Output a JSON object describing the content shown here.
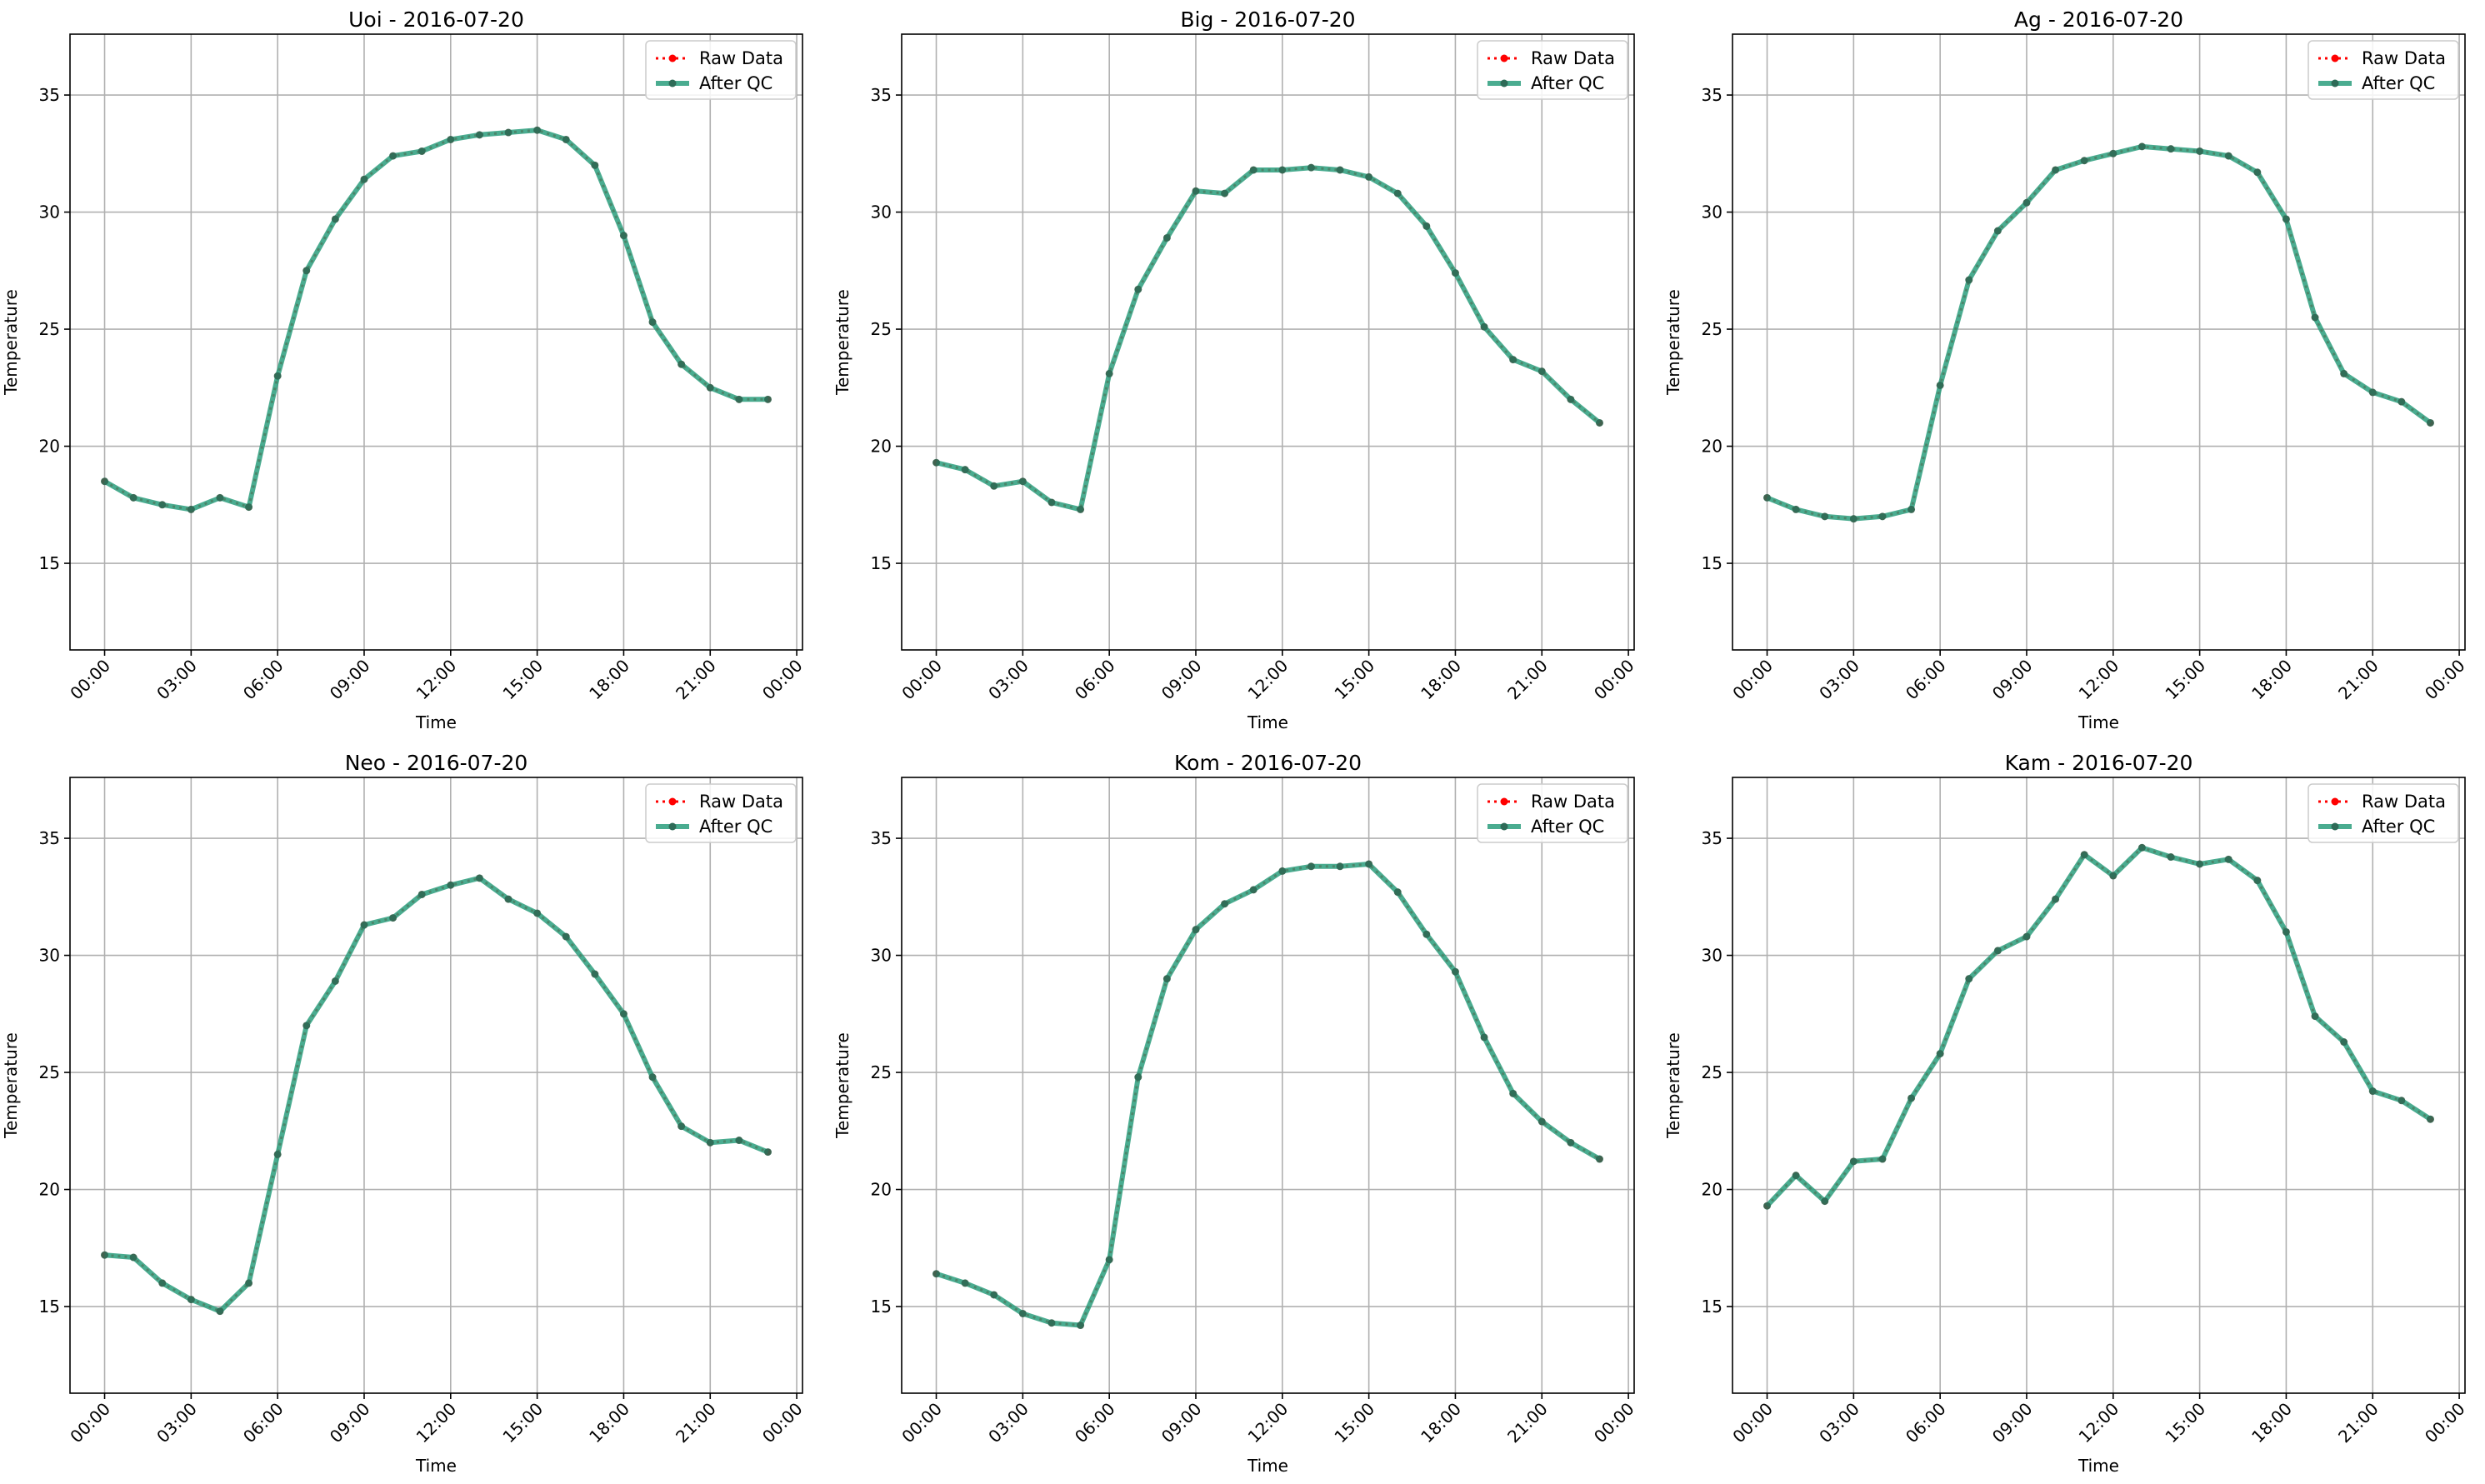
{
  "figure": {
    "legend_labels": {
      "raw": "Raw Data",
      "qc": "After QC"
    }
  },
  "colors": {
    "raw": "#ff0000",
    "qc": "#2a9d7c",
    "qc_marker": "#2e6b57",
    "grid": "#b0b0b0"
  },
  "chart_data": [
    {
      "type": "line",
      "title": "Uoi - 2016-07-20",
      "xlabel": "Time",
      "ylabel": "Temperature",
      "x_ticks": [
        "00:00",
        "03:00",
        "06:00",
        "09:00",
        "12:00",
        "15:00",
        "18:00",
        "21:00",
        "00:00"
      ],
      "y_ticks": [
        15,
        20,
        25,
        30,
        35
      ],
      "xlim_hours": [
        -1.2,
        24.2
      ],
      "ylim": [
        11.3,
        37.6
      ],
      "grid": true,
      "legend": "top-right",
      "series": [
        {
          "name": "Raw Data",
          "style": "dotted-red-markers",
          "x_hours": [
            0,
            1,
            2,
            3,
            4,
            5,
            6,
            7,
            8,
            9,
            10,
            11,
            12,
            13,
            14,
            15,
            16,
            17,
            18,
            19,
            20,
            21,
            22,
            23
          ],
          "values": [
            18.5,
            17.8,
            17.5,
            17.3,
            17.8,
            17.4,
            23.0,
            27.5,
            29.7,
            31.4,
            32.4,
            32.6,
            33.1,
            33.3,
            33.4,
            33.5,
            33.1,
            32.0,
            29.0,
            25.3,
            23.5,
            22.5,
            22.0,
            22.0
          ]
        },
        {
          "name": "After QC",
          "style": "solid-green",
          "x_hours": [
            0,
            1,
            2,
            3,
            4,
            5,
            6,
            7,
            8,
            9,
            10,
            11,
            12,
            13,
            14,
            15,
            16,
            17,
            18,
            19,
            20,
            21,
            22,
            23
          ],
          "values": [
            18.5,
            17.8,
            17.5,
            17.3,
            17.8,
            17.4,
            23.0,
            27.5,
            29.7,
            31.4,
            32.4,
            32.6,
            33.1,
            33.3,
            33.4,
            33.5,
            33.1,
            32.0,
            29.0,
            25.3,
            23.5,
            22.5,
            22.0,
            22.0
          ]
        }
      ]
    },
    {
      "type": "line",
      "title": "Big - 2016-07-20",
      "xlabel": "Time",
      "ylabel": "Temperature",
      "x_ticks": [
        "00:00",
        "03:00",
        "06:00",
        "09:00",
        "12:00",
        "15:00",
        "18:00",
        "21:00",
        "00:00"
      ],
      "y_ticks": [
        15,
        20,
        25,
        30,
        35
      ],
      "xlim_hours": [
        -1.2,
        24.2
      ],
      "ylim": [
        11.3,
        37.6
      ],
      "grid": true,
      "legend": "top-right",
      "series": [
        {
          "name": "Raw Data",
          "style": "dotted-red-markers",
          "x_hours": [
            0,
            1,
            2,
            3,
            4,
            5,
            6,
            7,
            8,
            9,
            10,
            11,
            12,
            13,
            14,
            15,
            16,
            17,
            18,
            19,
            20,
            21,
            22,
            23
          ],
          "values": [
            19.3,
            19.0,
            18.3,
            18.5,
            17.6,
            17.3,
            23.1,
            26.7,
            28.9,
            30.9,
            30.8,
            31.8,
            31.8,
            31.9,
            31.8,
            31.5,
            30.8,
            29.4,
            27.4,
            25.1,
            23.7,
            23.2,
            22.0,
            21.0
          ]
        },
        {
          "name": "After QC",
          "style": "solid-green",
          "x_hours": [
            0,
            1,
            2,
            3,
            4,
            5,
            6,
            7,
            8,
            9,
            10,
            11,
            12,
            13,
            14,
            15,
            16,
            17,
            18,
            19,
            20,
            21,
            22,
            23
          ],
          "values": [
            19.3,
            19.0,
            18.3,
            18.5,
            17.6,
            17.3,
            23.1,
            26.7,
            28.9,
            30.9,
            30.8,
            31.8,
            31.8,
            31.9,
            31.8,
            31.5,
            30.8,
            29.4,
            27.4,
            25.1,
            23.7,
            23.2,
            22.0,
            21.0
          ]
        }
      ]
    },
    {
      "type": "line",
      "title": "Ag - 2016-07-20",
      "xlabel": "Time",
      "ylabel": "Temperature",
      "x_ticks": [
        "00:00",
        "03:00",
        "06:00",
        "09:00",
        "12:00",
        "15:00",
        "18:00",
        "21:00",
        "00:00"
      ],
      "y_ticks": [
        15,
        20,
        25,
        30,
        35
      ],
      "xlim_hours": [
        -1.2,
        24.2
      ],
      "ylim": [
        11.3,
        37.6
      ],
      "grid": true,
      "legend": "top-right",
      "series": [
        {
          "name": "Raw Data",
          "style": "dotted-red-markers",
          "x_hours": [
            0,
            1,
            2,
            3,
            4,
            5,
            6,
            7,
            8,
            9,
            10,
            11,
            12,
            13,
            14,
            15,
            16,
            17,
            18,
            19,
            20,
            21,
            22,
            23
          ],
          "values": [
            17.8,
            17.3,
            17.0,
            16.9,
            17.0,
            17.3,
            22.6,
            27.1,
            29.2,
            30.4,
            31.8,
            32.2,
            32.5,
            32.8,
            32.7,
            32.6,
            32.4,
            31.7,
            29.7,
            25.5,
            23.1,
            22.3,
            21.9,
            21.0
          ]
        },
        {
          "name": "After QC",
          "style": "solid-green",
          "x_hours": [
            0,
            1,
            2,
            3,
            4,
            5,
            6,
            7,
            8,
            9,
            10,
            11,
            12,
            13,
            14,
            15,
            16,
            17,
            18,
            19,
            20,
            21,
            22,
            23
          ],
          "values": [
            17.8,
            17.3,
            17.0,
            16.9,
            17.0,
            17.3,
            22.6,
            27.1,
            29.2,
            30.4,
            31.8,
            32.2,
            32.5,
            32.8,
            32.7,
            32.6,
            32.4,
            31.7,
            29.7,
            25.5,
            23.1,
            22.3,
            21.9,
            21.0
          ]
        }
      ]
    },
    {
      "type": "line",
      "title": "Neo - 2016-07-20",
      "xlabel": "Time",
      "ylabel": "Temperature",
      "x_ticks": [
        "00:00",
        "03:00",
        "06:00",
        "09:00",
        "12:00",
        "15:00",
        "18:00",
        "21:00",
        "00:00"
      ],
      "y_ticks": [
        15,
        20,
        25,
        30,
        35
      ],
      "xlim_hours": [
        -1.2,
        24.2
      ],
      "ylim": [
        11.3,
        37.6
      ],
      "grid": true,
      "legend": "top-right",
      "series": [
        {
          "name": "Raw Data",
          "style": "dotted-red-markers",
          "x_hours": [
            0,
            1,
            2,
            3,
            4,
            5,
            6,
            7,
            8,
            9,
            10,
            11,
            12,
            13,
            14,
            15,
            16,
            17,
            18,
            19,
            20,
            21,
            22,
            23
          ],
          "values": [
            17.2,
            17.1,
            16.0,
            15.3,
            14.8,
            16.0,
            21.5,
            27.0,
            28.9,
            31.3,
            31.6,
            32.6,
            33.0,
            33.3,
            32.4,
            31.8,
            30.8,
            29.2,
            27.5,
            24.8,
            22.7,
            22.0,
            22.1,
            21.6
          ]
        },
        {
          "name": "After QC",
          "style": "solid-green",
          "x_hours": [
            0,
            1,
            2,
            3,
            4,
            5,
            6,
            7,
            8,
            9,
            10,
            11,
            12,
            13,
            14,
            15,
            16,
            17,
            18,
            19,
            20,
            21,
            22,
            23
          ],
          "values": [
            17.2,
            17.1,
            16.0,
            15.3,
            14.8,
            16.0,
            21.5,
            27.0,
            28.9,
            31.3,
            31.6,
            32.6,
            33.0,
            33.3,
            32.4,
            31.8,
            30.8,
            29.2,
            27.5,
            24.8,
            22.7,
            22.0,
            22.1,
            21.6
          ]
        }
      ]
    },
    {
      "type": "line",
      "title": "Kom - 2016-07-20",
      "xlabel": "Time",
      "ylabel": "Temperature",
      "x_ticks": [
        "00:00",
        "03:00",
        "06:00",
        "09:00",
        "12:00",
        "15:00",
        "18:00",
        "21:00",
        "00:00"
      ],
      "y_ticks": [
        15,
        20,
        25,
        30,
        35
      ],
      "xlim_hours": [
        -1.2,
        24.2
      ],
      "ylim": [
        11.3,
        37.6
      ],
      "grid": true,
      "legend": "top-right",
      "series": [
        {
          "name": "Raw Data",
          "style": "dotted-red-markers",
          "x_hours": [
            0,
            1,
            2,
            3,
            4,
            5,
            6,
            7,
            8,
            9,
            10,
            11,
            12,
            13,
            14,
            15,
            16,
            17,
            18,
            19,
            20,
            21,
            22,
            23
          ],
          "values": [
            16.4,
            16.0,
            15.5,
            14.7,
            14.3,
            14.2,
            17.0,
            24.8,
            29.0,
            31.1,
            32.2,
            32.8,
            33.6,
            33.8,
            33.8,
            33.9,
            32.7,
            30.9,
            29.3,
            26.5,
            24.1,
            22.9,
            22.0,
            21.3
          ]
        },
        {
          "name": "After QC",
          "style": "solid-green",
          "x_hours": [
            0,
            1,
            2,
            3,
            4,
            5,
            6,
            7,
            8,
            9,
            10,
            11,
            12,
            13,
            14,
            15,
            16,
            17,
            18,
            19,
            20,
            21,
            22,
            23
          ],
          "values": [
            16.4,
            16.0,
            15.5,
            14.7,
            14.3,
            14.2,
            17.0,
            24.8,
            29.0,
            31.1,
            32.2,
            32.8,
            33.6,
            33.8,
            33.8,
            33.9,
            32.7,
            30.9,
            29.3,
            26.5,
            24.1,
            22.9,
            22.0,
            21.3
          ]
        }
      ]
    },
    {
      "type": "line",
      "title": "Kam - 2016-07-20",
      "xlabel": "Time",
      "ylabel": "Temperature",
      "x_ticks": [
        "00:00",
        "03:00",
        "06:00",
        "09:00",
        "12:00",
        "15:00",
        "18:00",
        "21:00",
        "00:00"
      ],
      "y_ticks": [
        15,
        20,
        25,
        30,
        35
      ],
      "xlim_hours": [
        -1.2,
        24.2
      ],
      "ylim": [
        11.3,
        37.6
      ],
      "grid": true,
      "legend": "top-right",
      "series": [
        {
          "name": "Raw Data",
          "style": "dotted-red-markers",
          "x_hours": [
            0,
            1,
            2,
            3,
            4,
            5,
            6,
            7,
            8,
            9,
            10,
            11,
            12,
            13,
            14,
            15,
            16,
            17,
            18,
            19,
            20,
            21,
            22,
            23
          ],
          "values": [
            19.3,
            20.6,
            19.5,
            21.2,
            21.3,
            23.9,
            25.8,
            29.0,
            30.2,
            30.8,
            32.4,
            34.3,
            33.4,
            34.6,
            34.2,
            33.9,
            34.1,
            33.2,
            31.0,
            27.4,
            26.3,
            24.2,
            23.8,
            23.0
          ]
        },
        {
          "name": "After QC",
          "style": "solid-green",
          "x_hours": [
            0,
            1,
            2,
            3,
            4,
            5,
            6,
            7,
            8,
            9,
            10,
            11,
            12,
            13,
            14,
            15,
            16,
            17,
            18,
            19,
            20,
            21,
            22,
            23
          ],
          "values": [
            19.3,
            20.6,
            19.5,
            21.2,
            21.3,
            23.9,
            25.8,
            29.0,
            30.2,
            30.8,
            32.4,
            34.3,
            33.4,
            34.6,
            34.2,
            33.9,
            34.1,
            33.2,
            31.0,
            27.4,
            26.3,
            24.2,
            23.8,
            23.0
          ]
        }
      ]
    }
  ]
}
